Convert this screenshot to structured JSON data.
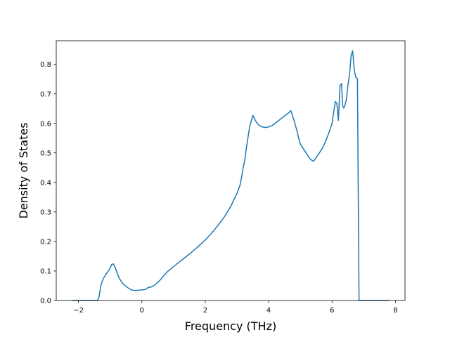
{
  "chart_data": {
    "type": "line",
    "title": "",
    "xlabel": "Frequency (THz)",
    "ylabel": "Density of States",
    "xlim": [
      -2.7,
      8.3
    ],
    "ylim": [
      0.0,
      0.88
    ],
    "grid": false,
    "legend": "none",
    "xticks": [
      -2,
      0,
      2,
      4,
      6,
      8
    ],
    "xtick_labels": [
      "−2",
      "0",
      "2",
      "4",
      "6",
      "8"
    ],
    "yticks": [
      0.0,
      0.1,
      0.2,
      0.3,
      0.4,
      0.5,
      0.6,
      0.7,
      0.8
    ],
    "ytick_labels": [
      "0.0",
      "0.1",
      "0.2",
      "0.3",
      "0.4",
      "0.5",
      "0.6",
      "0.7",
      "0.8"
    ],
    "series": [
      {
        "color": "#1f77b4",
        "x": [
          -2.2,
          -1.4,
          -1.35,
          -1.3,
          -1.25,
          -1.2,
          -1.15,
          -1.1,
          -1.05,
          -1.0,
          -0.95,
          -0.9,
          -0.85,
          -0.8,
          -0.75,
          -0.7,
          -0.6,
          -0.5,
          -0.4,
          -0.3,
          -0.2,
          -0.1,
          0.0,
          0.1,
          0.15,
          0.2,
          0.3,
          0.4,
          0.5,
          0.6,
          0.7,
          0.8,
          0.9,
          1.0,
          1.2,
          1.4,
          1.6,
          1.8,
          2.0,
          2.2,
          2.4,
          2.6,
          2.8,
          3.0,
          3.1,
          3.15,
          3.2,
          3.25,
          3.3,
          3.4,
          3.5,
          3.6,
          3.7,
          3.8,
          3.9,
          4.0,
          4.1,
          4.2,
          4.3,
          4.4,
          4.5,
          4.6,
          4.7,
          4.8,
          4.9,
          4.95,
          5.0,
          5.1,
          5.2,
          5.3,
          5.4,
          5.45,
          5.5,
          5.6,
          5.7,
          5.8,
          5.9,
          6.0,
          6.1,
          6.15,
          6.2,
          6.25,
          6.3,
          6.33,
          6.37,
          6.4,
          6.45,
          6.5,
          6.55,
          6.6,
          6.65,
          6.7,
          6.75,
          6.8,
          6.85,
          6.9,
          6.95,
          6.98,
          7.0,
          7.01,
          7.05,
          7.3,
          7.8
        ],
        "y": [
          0.0,
          0.0,
          0.012,
          0.048,
          0.065,
          0.077,
          0.086,
          0.094,
          0.1,
          0.11,
          0.122,
          0.124,
          0.114,
          0.1,
          0.085,
          0.073,
          0.057,
          0.048,
          0.04,
          0.035,
          0.034,
          0.035,
          0.036,
          0.037,
          0.04,
          0.044,
          0.046,
          0.052,
          0.061,
          0.072,
          0.085,
          0.097,
          0.106,
          0.115,
          0.132,
          0.149,
          0.166,
          0.185,
          0.205,
          0.228,
          0.254,
          0.283,
          0.318,
          0.363,
          0.392,
          0.42,
          0.452,
          0.478,
          0.52,
          0.588,
          0.627,
          0.606,
          0.593,
          0.588,
          0.586,
          0.588,
          0.592,
          0.6,
          0.608,
          0.617,
          0.625,
          0.633,
          0.643,
          0.61,
          0.572,
          0.548,
          0.53,
          0.513,
          0.497,
          0.48,
          0.472,
          0.476,
          0.485,
          0.5,
          0.517,
          0.54,
          0.568,
          0.6,
          0.674,
          0.668,
          0.61,
          0.728,
          0.735,
          0.66,
          0.652,
          0.66,
          0.68,
          0.73,
          0.765,
          0.83,
          0.846,
          0.78,
          0.756,
          0.752,
          0.0,
          0.0,
          0.0,
          0.0,
          0.0,
          0.0,
          0.0,
          0.0,
          0.0
        ]
      }
    ]
  }
}
